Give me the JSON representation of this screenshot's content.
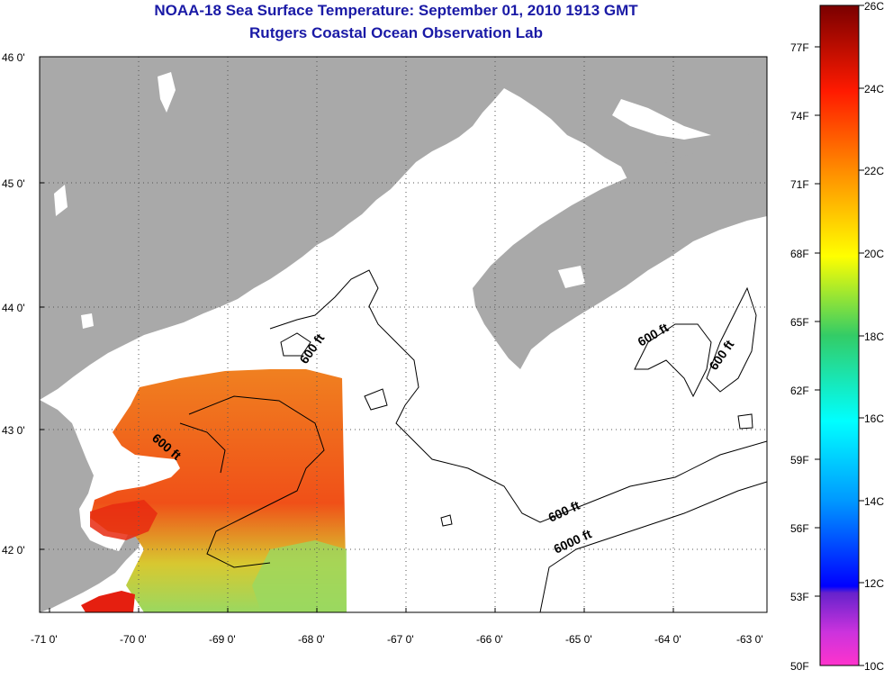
{
  "header": {
    "title": "NOAA-18 Sea Surface Temperature:  September 01, 2010 1913 GMT",
    "subtitle": "Rutgers Coastal Ocean Observation Lab"
  },
  "map": {
    "lon_labels": [
      "-71 0'",
      "-70 0'",
      "-69 0'",
      "-68 0'",
      "-67 0'",
      "-66 0'",
      "-65 0'",
      "-64 0'",
      "-63 0'"
    ],
    "lat_labels": [
      "46 0'",
      "45 0'",
      "44 0'",
      "43 0'",
      "42 0'"
    ],
    "contour_labels": [
      "600 ft",
      "600 ft",
      "600 ft",
      "600 ft",
      "600 ft",
      "6000 ft"
    ]
  },
  "colorbar": {
    "celsius_labels": [
      "26C",
      "24C",
      "22C",
      "20C",
      "18C",
      "16C",
      "14C",
      "12C",
      "10C"
    ],
    "fahrenheit_labels": [
      "77F",
      "74F",
      "71F",
      "68F",
      "65F",
      "62F",
      "59F",
      "56F",
      "53F",
      "50F"
    ],
    "colors": [
      "#7a0000",
      "#ff0000",
      "#ff8c00",
      "#ffff00",
      "#33cc66",
      "#00ffff",
      "#0099ff",
      "#0000ff",
      "#7722cc",
      "#ff33cc"
    ]
  }
}
